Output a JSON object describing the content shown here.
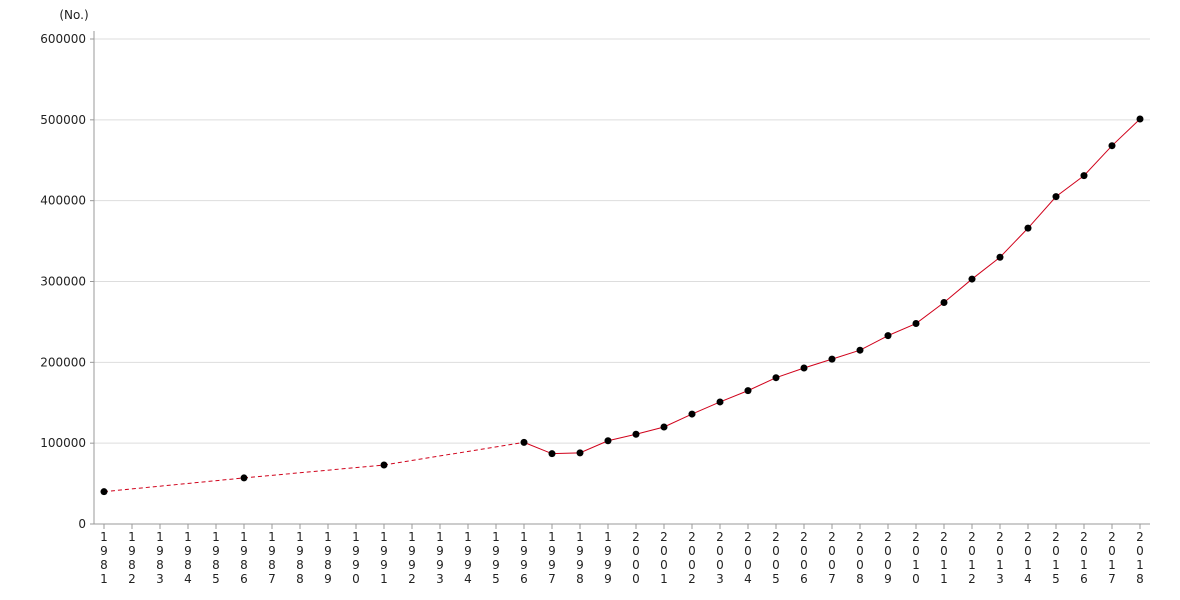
{
  "chart_data": {
    "type": "line",
    "y_unit_label": "(No.)",
    "categories": [
      "1981",
      "1982",
      "1983",
      "1984",
      "1985",
      "1986",
      "1987",
      "1988",
      "1989",
      "1990",
      "1991",
      "1992",
      "1993",
      "1994",
      "1995",
      "1996",
      "1997",
      "1998",
      "1999",
      "2000",
      "2001",
      "2002",
      "2003",
      "2004",
      "2005",
      "2006",
      "2007",
      "2008",
      "2009",
      "2010",
      "2011",
      "2012",
      "2013",
      "2014",
      "2015",
      "2016",
      "2017",
      "2018"
    ],
    "series": [
      {
        "color": "#d0021b",
        "marker_color": "#000000",
        "values": [
          40000,
          null,
          null,
          null,
          null,
          57000,
          null,
          null,
          null,
          null,
          73000,
          null,
          null,
          null,
          null,
          101000,
          87000,
          88000,
          103000,
          111000,
          120000,
          136000,
          151000,
          165000,
          181000,
          193000,
          204000,
          215000,
          233000,
          248000,
          274000,
          303000,
          330000,
          366000,
          405000,
          431000,
          468000,
          501000
        ]
      }
    ],
    "gap_style": "dashed",
    "ylim": [
      0,
      600000
    ],
    "yticks": [
      0,
      100000,
      200000,
      300000,
      400000,
      500000,
      600000
    ],
    "grid": true
  }
}
